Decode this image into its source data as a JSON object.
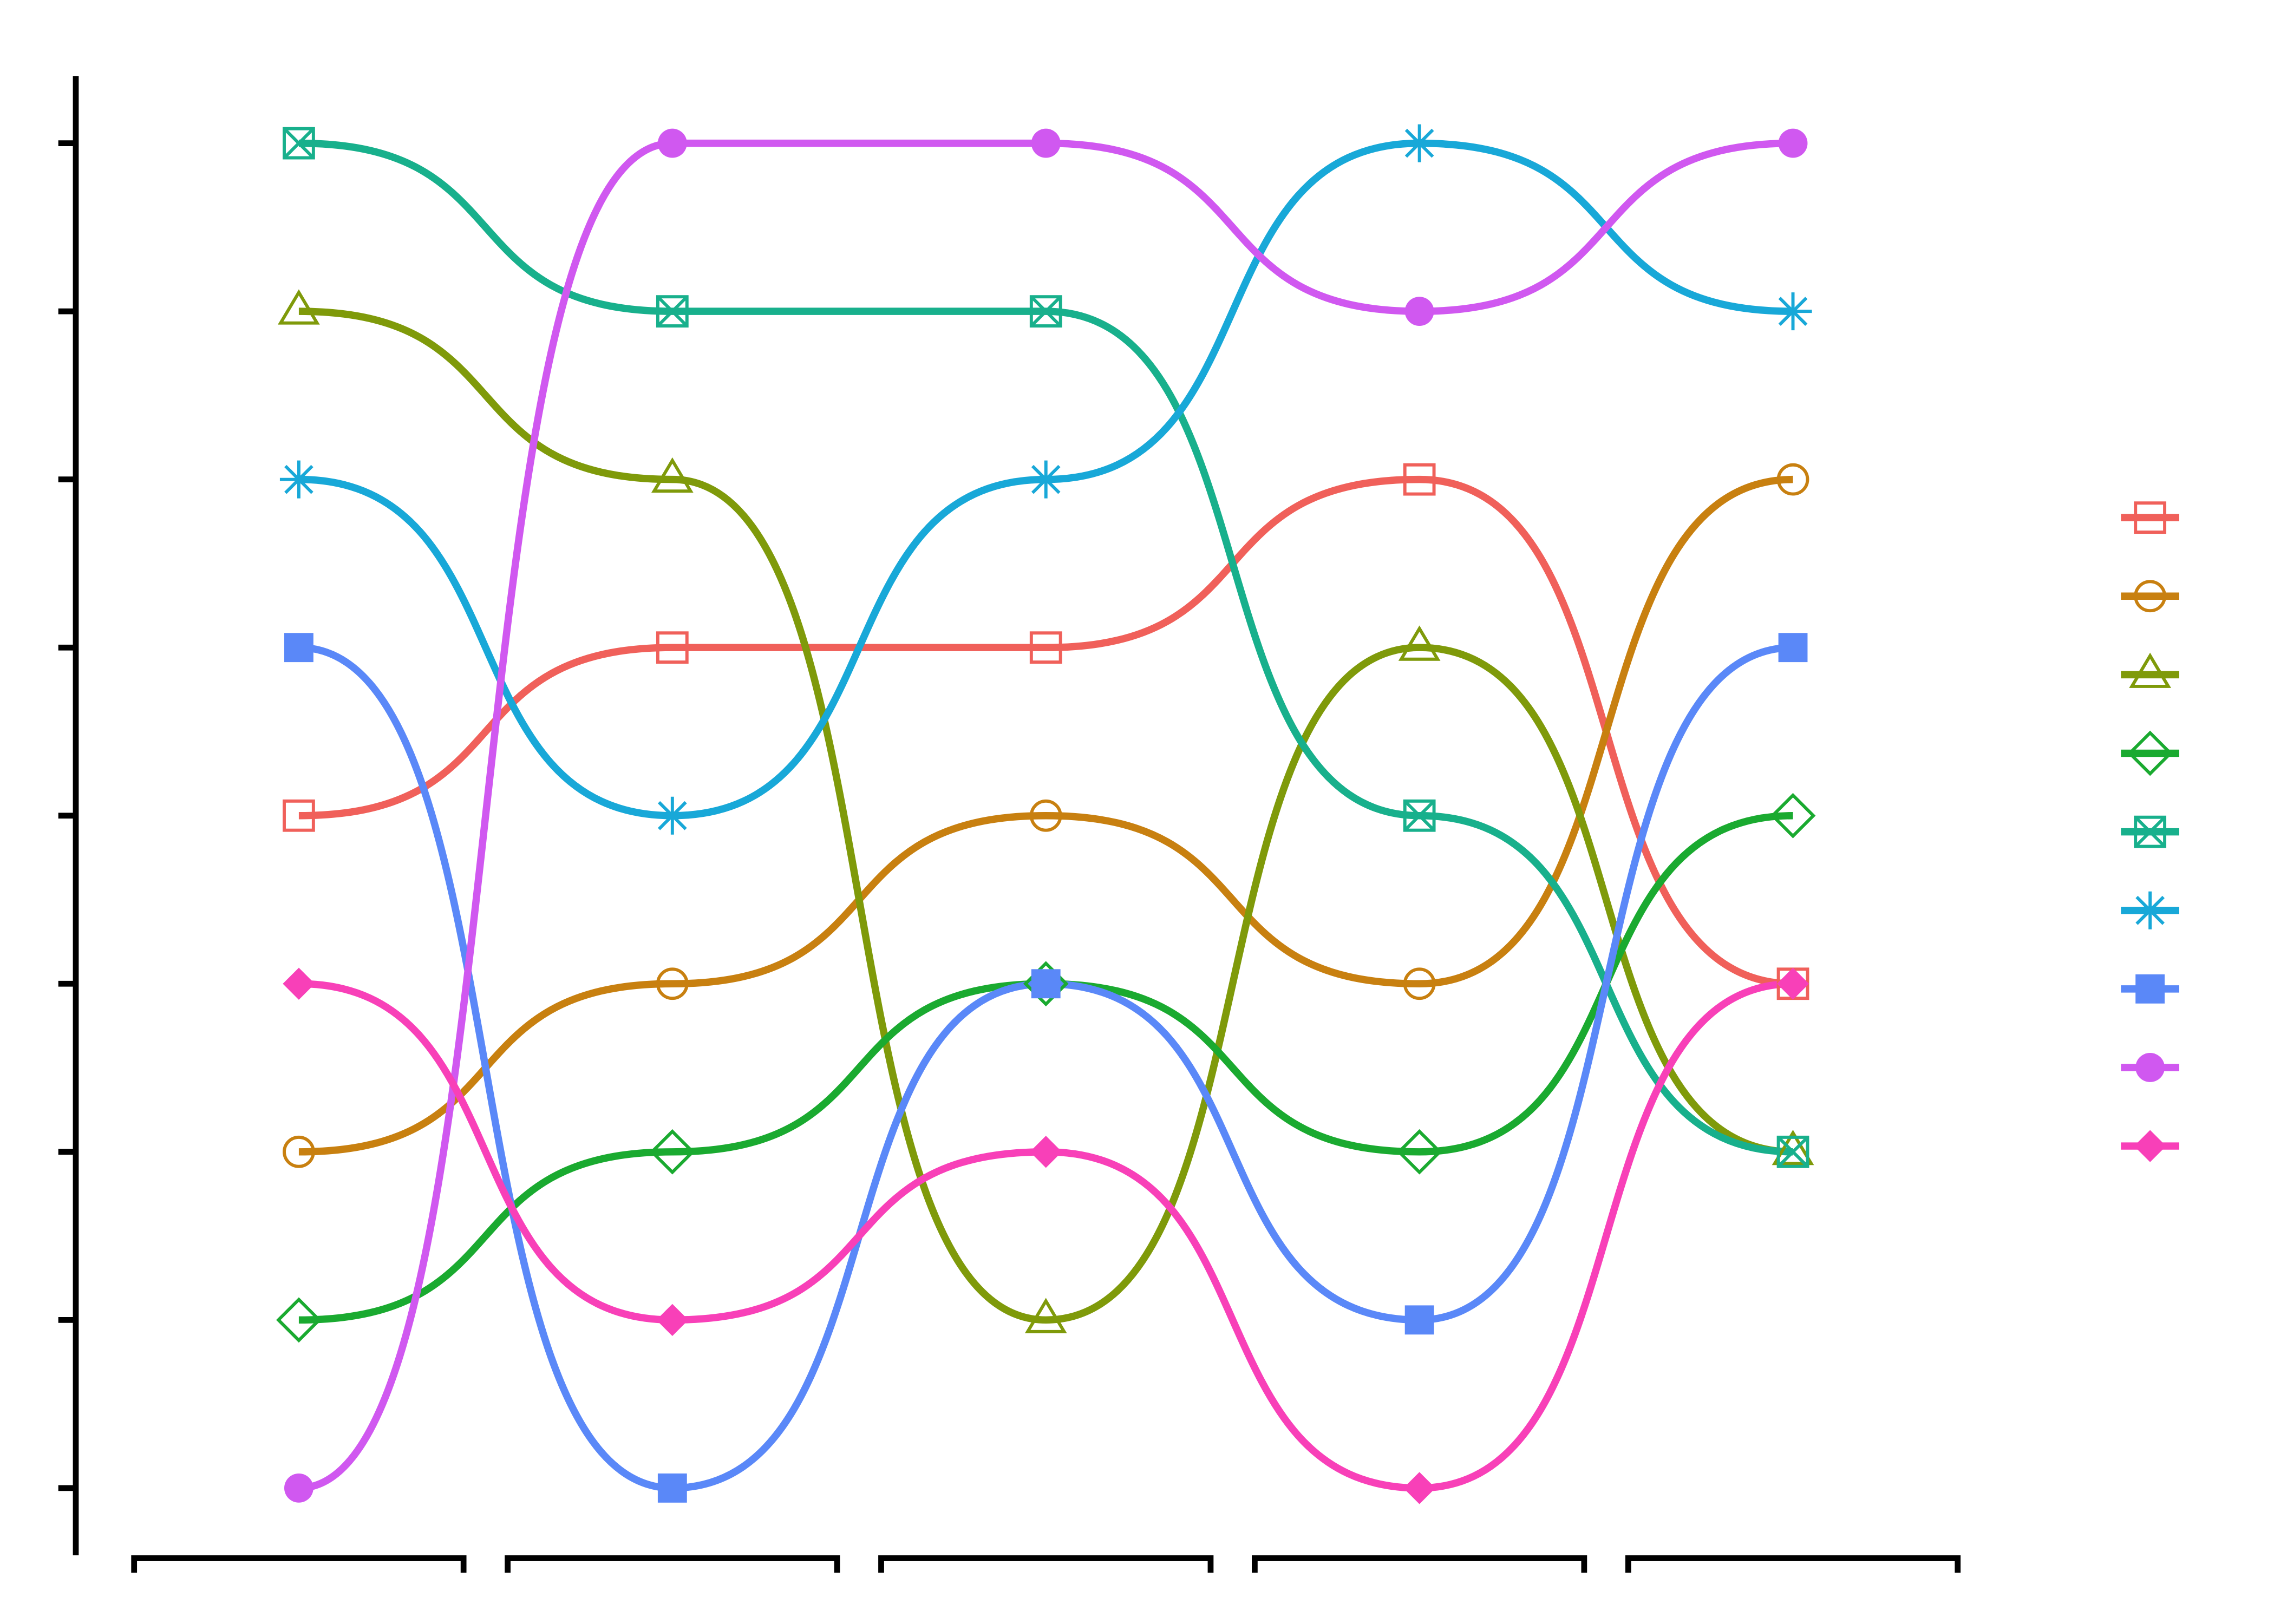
{
  "chart_data": {
    "type": "bump",
    "categories": [
      null,
      null,
      null,
      null,
      null
    ],
    "ylim": [
      0.6,
      9.4
    ],
    "yticks": [
      1,
      2,
      3,
      4,
      5,
      6,
      7,
      8,
      9
    ],
    "series": [
      {
        "color": "#f0605a",
        "marker": "square-open",
        "values": [
          5,
          6,
          6,
          7,
          4
        ]
      },
      {
        "color": "#c88010",
        "marker": "circle-open",
        "values": [
          3,
          4,
          5,
          4,
          7
        ]
      },
      {
        "color": "#7f9a0a",
        "marker": "triangle-open",
        "values": [
          8,
          7,
          2,
          6,
          3
        ]
      },
      {
        "color": "#1aaa30",
        "marker": "diamond-open",
        "values": [
          2,
          3,
          4,
          3,
          5
        ]
      },
      {
        "color": "#18b08c",
        "marker": "square-cross",
        "values": [
          9,
          8,
          8,
          5,
          3
        ]
      },
      {
        "color": "#18a8d8",
        "marker": "asterisk",
        "values": [
          7,
          5,
          7,
          9,
          8
        ]
      },
      {
        "color": "#5a88f8",
        "marker": "square",
        "values": [
          6,
          1,
          4,
          2,
          6
        ]
      },
      {
        "color": "#d058f0",
        "marker": "circle",
        "values": [
          1,
          9,
          9,
          8,
          9
        ]
      },
      {
        "color": "#f840b8",
        "marker": "diamond",
        "values": [
          4,
          2,
          3,
          1,
          4
        ]
      }
    ]
  }
}
